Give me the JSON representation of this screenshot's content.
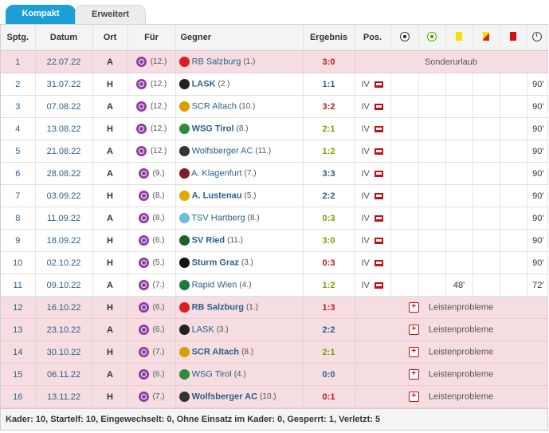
{
  "tabs": {
    "active": "Kompakt",
    "inactive": "Erweitert"
  },
  "columns": {
    "spieltag": "Sptg.",
    "datum": "Datum",
    "ort": "Ort",
    "fuer": "Für",
    "gegner": "Gegner",
    "ergebnis": "Ergebnis",
    "pos": "Pos."
  },
  "matches": [
    {
      "sptg": "1",
      "datum": "22.07.22",
      "ort": "A",
      "fuer": "(12.)",
      "gegner": "RB Salzburg",
      "gegner_rank": "(1.)",
      "ergebnis": "3:0",
      "note": "Sonderurlaub",
      "bold": false
    },
    {
      "sptg": "2",
      "datum": "31.07.22",
      "ort": "H",
      "fuer": "(12.)",
      "gegner": "LASK",
      "gegner_rank": "(2.)",
      "ergebnis": "1:1",
      "pos": "IV",
      "minutes": "90'",
      "bold": true
    },
    {
      "sptg": "3",
      "datum": "07.08.22",
      "ort": "A",
      "fuer": "(12.)",
      "gegner": "SCR Altach",
      "gegner_rank": "(10.)",
      "ergebnis": "3:2",
      "pos": "IV",
      "minutes": "90'",
      "bold": false
    },
    {
      "sptg": "4",
      "datum": "13.08.22",
      "ort": "H",
      "fuer": "(12.)",
      "gegner": "WSG Tirol",
      "gegner_rank": "(8.)",
      "ergebnis": "2:1",
      "pos": "IV",
      "minutes": "90'",
      "bold": true
    },
    {
      "sptg": "5",
      "datum": "21.08.22",
      "ort": "A",
      "fuer": "(12.)",
      "gegner": "Wolfsberger AC",
      "gegner_rank": "(11.)",
      "ergebnis": "1:2",
      "pos": "IV",
      "minutes": "90'",
      "bold": false
    },
    {
      "sptg": "6",
      "datum": "28.08.22",
      "ort": "A",
      "fuer": "(9.)",
      "gegner": "A. Klagenfurt",
      "gegner_rank": "(7.)",
      "ergebnis": "3:3",
      "pos": "IV",
      "minutes": "90'",
      "bold": false
    },
    {
      "sptg": "7",
      "datum": "03.09.22",
      "ort": "H",
      "fuer": "(8.)",
      "gegner": "A. Lustenau",
      "gegner_rank": "(5.)",
      "ergebnis": "2:2",
      "pos": "IV",
      "minutes": "90'",
      "bold": true
    },
    {
      "sptg": "8",
      "datum": "11.09.22",
      "ort": "A",
      "fuer": "(8.)",
      "gegner": "TSV Hartberg",
      "gegner_rank": "(8.)",
      "ergebnis": "0:3",
      "pos": "IV",
      "minutes": "90'",
      "bold": false
    },
    {
      "sptg": "9",
      "datum": "18.09.22",
      "ort": "H",
      "fuer": "(6.)",
      "gegner": "SV Ried",
      "gegner_rank": "(11.)",
      "ergebnis": "3:0",
      "pos": "IV",
      "minutes": "90'",
      "bold": true
    },
    {
      "sptg": "10",
      "datum": "02.10.22",
      "ort": "H",
      "fuer": "(5.)",
      "gegner": "Sturm Graz",
      "gegner_rank": "(3.)",
      "ergebnis": "0:3",
      "pos": "IV",
      "minutes": "90'",
      "bold": true
    },
    {
      "sptg": "11",
      "datum": "09.10.22",
      "ort": "A",
      "fuer": "(7.)",
      "gegner": "Rapid Wien",
      "gegner_rank": "(4.)",
      "ergebnis": "1:2",
      "pos": "IV",
      "yellow": "48'",
      "minutes": "72'",
      "bold": false
    },
    {
      "sptg": "12",
      "datum": "16.10.22",
      "ort": "H",
      "fuer": "(6.)",
      "gegner": "RB Salzburg",
      "gegner_rank": "(1.)",
      "ergebnis": "1:3",
      "note": "Leistenprobleme",
      "bold": true
    },
    {
      "sptg": "13",
      "datum": "23.10.22",
      "ort": "A",
      "fuer": "(6.)",
      "gegner": "LASK",
      "gegner_rank": "(3.)",
      "ergebnis": "2:2",
      "note": "Leistenprobleme",
      "bold": false
    },
    {
      "sptg": "14",
      "datum": "30.10.22",
      "ort": "H",
      "fuer": "(7.)",
      "gegner": "SCR Altach",
      "gegner_rank": "(8.)",
      "ergebnis": "2:1",
      "note": "Leistenprobleme",
      "bold": true
    },
    {
      "sptg": "15",
      "datum": "06.11.22",
      "ort": "A",
      "fuer": "(6.)",
      "gegner": "WSG Tirol",
      "gegner_rank": "(4.)",
      "ergebnis": "0:0",
      "note": "Leistenprobleme",
      "bold": false
    },
    {
      "sptg": "16",
      "datum": "13.11.22",
      "ort": "H",
      "fuer": "(7.)",
      "gegner": "Wolfsberger AC",
      "gegner_rank": "(10.)",
      "ergebnis": "0:1",
      "note": "Leistenprobleme",
      "bold": true
    }
  ],
  "footer": "Kader: 10, Startelf: 10, Eingewechselt: 0, Ohne Einsatz im Kader: 0, Gesperrt: 1, Verletzt: 5",
  "colors": {
    "accent": "#1a9fd7",
    "win": "#7b9e00",
    "draw": "#2d5f8a",
    "loss": "#c01b1b",
    "absent_row": "#f6dde1"
  }
}
